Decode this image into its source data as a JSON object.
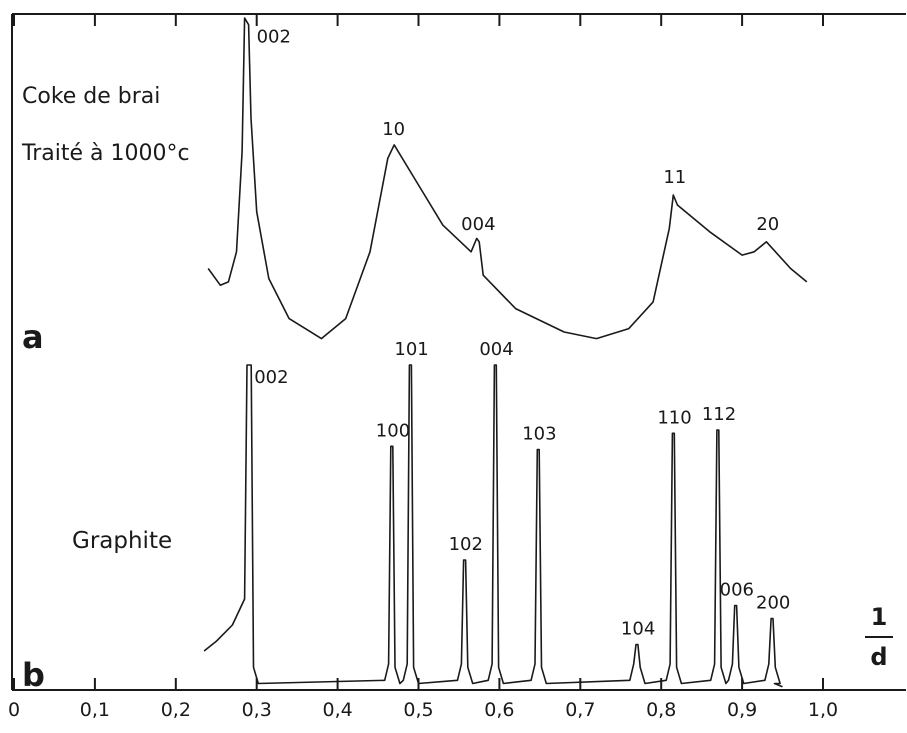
{
  "chart_data": {
    "type": "line",
    "x_unit": {
      "numerator": "1",
      "denominator": "d"
    },
    "xlim": [
      0,
      1.05
    ],
    "x_ticks": [
      {
        "value": 0.0,
        "label": "0"
      },
      {
        "value": 0.1,
        "label": "0,1"
      },
      {
        "value": 0.2,
        "label": "0,2"
      },
      {
        "value": 0.3,
        "label": "0,3"
      },
      {
        "value": 0.4,
        "label": "0,4"
      },
      {
        "value": 0.5,
        "label": "0,5"
      },
      {
        "value": 0.6,
        "label": "0,6"
      },
      {
        "value": 0.7,
        "label": "0,7"
      },
      {
        "value": 0.8,
        "label": "0,8"
      },
      {
        "value": 0.9,
        "label": "0,9"
      },
      {
        "value": 1.0,
        "label": "1,0"
      }
    ],
    "panels": [
      {
        "panel_label": "a",
        "title_lines": [
          "Coke de brai",
          "Traité à 1000°c"
        ],
        "ylim": [
          0,
          1
        ],
        "points": [
          [
            0.24,
            0.25
          ],
          [
            0.255,
            0.2
          ],
          [
            0.265,
            0.21
          ],
          [
            0.275,
            0.3
          ],
          [
            0.282,
            0.6
          ],
          [
            0.285,
            1.0
          ],
          [
            0.29,
            0.98
          ],
          [
            0.293,
            0.7
          ],
          [
            0.3,
            0.42
          ],
          [
            0.315,
            0.22
          ],
          [
            0.34,
            0.1
          ],
          [
            0.38,
            0.04
          ],
          [
            0.41,
            0.1
          ],
          [
            0.44,
            0.3
          ],
          [
            0.462,
            0.58
          ],
          [
            0.47,
            0.62
          ],
          [
            0.5,
            0.5
          ],
          [
            0.53,
            0.38
          ],
          [
            0.565,
            0.3
          ],
          [
            0.572,
            0.34
          ],
          [
            0.575,
            0.33
          ],
          [
            0.58,
            0.23
          ],
          [
            0.62,
            0.13
          ],
          [
            0.68,
            0.06
          ],
          [
            0.72,
            0.04
          ],
          [
            0.76,
            0.07
          ],
          [
            0.79,
            0.15
          ],
          [
            0.81,
            0.37
          ],
          [
            0.815,
            0.47
          ],
          [
            0.82,
            0.44
          ],
          [
            0.86,
            0.36
          ],
          [
            0.9,
            0.29
          ],
          [
            0.915,
            0.3
          ],
          [
            0.93,
            0.33
          ],
          [
            0.96,
            0.25
          ],
          [
            0.98,
            0.21
          ]
        ],
        "peaks": [
          {
            "label": "002",
            "x": 0.29,
            "y": 0.98
          },
          {
            "label": "10",
            "x": 0.47,
            "y": 0.62
          },
          {
            "label": "004",
            "x": 0.575,
            "y": 0.33
          },
          {
            "label": "11",
            "x": 0.815,
            "y": 0.47
          },
          {
            "label": "20",
            "x": 0.93,
            "y": 0.33
          }
        ]
      },
      {
        "panel_label": "b",
        "title_lines": [
          "Graphite"
        ],
        "ylim": [
          0,
          1
        ],
        "baseline": 0.02,
        "onset": [
          [
            0.235,
            0.12
          ],
          [
            0.25,
            0.15
          ],
          [
            0.27,
            0.2
          ],
          [
            0.285,
            0.28
          ]
        ],
        "offset": [
          [
            0.94,
            0.02
          ],
          [
            0.95,
            0.01
          ]
        ],
        "peaks": [
          {
            "label": "002",
            "x": 0.292,
            "y": 1.0
          },
          {
            "label": "100",
            "x": 0.467,
            "y": 0.75
          },
          {
            "label": "101",
            "x": 0.49,
            "y": 1.0
          },
          {
            "label": "102",
            "x": 0.557,
            "y": 0.4
          },
          {
            "label": "004",
            "x": 0.595,
            "y": 1.0
          },
          {
            "label": "103",
            "x": 0.648,
            "y": 0.74
          },
          {
            "label": "104",
            "x": 0.77,
            "y": 0.14
          },
          {
            "label": "110",
            "x": 0.815,
            "y": 0.79
          },
          {
            "label": "112",
            "x": 0.87,
            "y": 0.8
          },
          {
            "label": "006",
            "x": 0.892,
            "y": 0.26
          },
          {
            "label": "200",
            "x": 0.937,
            "y": 0.22
          }
        ]
      }
    ]
  }
}
